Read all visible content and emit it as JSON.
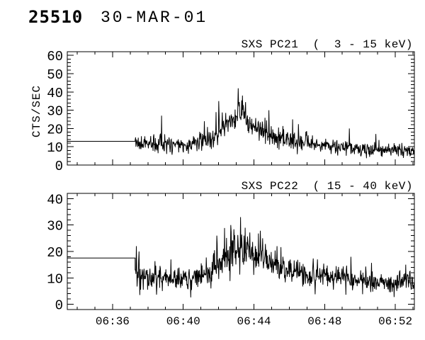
{
  "header": {
    "observation_number": "25510",
    "date": "30-MAR-01"
  },
  "colors": {
    "foreground": "#000000",
    "background": "#ffffff"
  },
  "chart_data": [
    {
      "id": "pc21",
      "type": "line",
      "title": "SXS PC21  (  3 - 15 keV)",
      "ylabel": "CTS/SEC",
      "ylim": [
        0,
        62
      ],
      "yticks": [
        0,
        10,
        20,
        30,
        40,
        50,
        60
      ],
      "ytick_labels": [
        "0",
        "10",
        "20",
        "30",
        "40",
        "50",
        "60"
      ],
      "y_minor_step": 2,
      "xlim_minutes": [
        33.44,
        53.08
      ],
      "xticks_minutes": [
        36,
        40,
        44,
        48,
        52
      ],
      "xtick_labels": [
        "06:36",
        "06:40",
        "06:44",
        "06:48",
        "06:52"
      ],
      "x_minor_step_minutes": 1,
      "show_x_labels": false,
      "grid": false,
      "line_color": "#000000",
      "flat_segment": {
        "start_min": 33.44,
        "end_min": 37.28,
        "value": 13.0
      },
      "noise_seed": 1103,
      "sample_step_min": 0.022,
      "mean_profile": [
        [
          37.28,
          12.5
        ],
        [
          38.0,
          12.0
        ],
        [
          39.0,
          11.5
        ],
        [
          40.0,
          11.0
        ],
        [
          40.8,
          12.0
        ],
        [
          41.5,
          14.5
        ],
        [
          42.0,
          17.0
        ],
        [
          42.5,
          22.0
        ],
        [
          42.9,
          26.0
        ],
        [
          43.15,
          29.0
        ],
        [
          43.4,
          26.0
        ],
        [
          43.8,
          22.0
        ],
        [
          44.3,
          19.0
        ],
        [
          45.0,
          16.5
        ],
        [
          45.8,
          14.5
        ],
        [
          46.5,
          13.0
        ],
        [
          47.3,
          11.5
        ],
        [
          48.0,
          10.5
        ],
        [
          49.0,
          9.5
        ],
        [
          50.0,
          9.0
        ],
        [
          51.0,
          8.5
        ],
        [
          52.0,
          8.0
        ],
        [
          53.1,
          7.5
        ]
      ],
      "sigma_profile": [
        [
          37.28,
          2.6
        ],
        [
          40.0,
          2.3
        ],
        [
          41.5,
          2.8
        ],
        [
          42.5,
          3.5
        ],
        [
          43.5,
          3.8
        ],
        [
          44.5,
          3.2
        ],
        [
          46.0,
          2.6
        ],
        [
          48.0,
          2.0
        ],
        [
          53.1,
          1.7
        ]
      ],
      "spikes": [
        [
          38.78,
          27
        ],
        [
          41.2,
          24
        ],
        [
          42.0,
          35
        ],
        [
          43.1,
          42
        ],
        [
          43.35,
          38
        ],
        [
          44.85,
          30
        ],
        [
          46.2,
          25
        ],
        [
          49.4,
          20
        ],
        [
          50.9,
          17
        ]
      ]
    },
    {
      "id": "pc22",
      "type": "line",
      "title": "SXS PC22  ( 15 - 40 keV)",
      "ylabel": "",
      "ylim": [
        -2,
        42
      ],
      "yticks": [
        0,
        10,
        20,
        30,
        40
      ],
      "ytick_labels": [
        "0",
        "10",
        "20",
        "30",
        "40"
      ],
      "y_minor_step": 2,
      "xlim_minutes": [
        33.44,
        53.08
      ],
      "xticks_minutes": [
        36,
        40,
        44,
        48,
        52
      ],
      "xtick_labels": [
        "06:36",
        "06:40",
        "06:44",
        "06:48",
        "06:52"
      ],
      "x_minor_step_minutes": 1,
      "show_x_labels": true,
      "grid": false,
      "line_color": "#000000",
      "flat_segment": {
        "start_min": 33.44,
        "end_min": 37.28,
        "value": 17.5
      },
      "noise_seed": 2207,
      "sample_step_min": 0.022,
      "mean_profile": [
        [
          37.28,
          11.0
        ],
        [
          37.6,
          10.0
        ],
        [
          38.5,
          9.5
        ],
        [
          39.5,
          9.5
        ],
        [
          40.5,
          9.5
        ],
        [
          41.3,
          11.0
        ],
        [
          42.0,
          15.0
        ],
        [
          42.5,
          18.5
        ],
        [
          43.0,
          20.5
        ],
        [
          43.3,
          21.0
        ],
        [
          43.7,
          19.5
        ],
        [
          44.2,
          17.5
        ],
        [
          44.8,
          15.5
        ],
        [
          45.5,
          14.0
        ],
        [
          46.2,
          12.5
        ],
        [
          47.0,
          11.0
        ],
        [
          48.0,
          10.5
        ],
        [
          49.0,
          10.0
        ],
        [
          50.0,
          9.0
        ],
        [
          51.0,
          8.5
        ],
        [
          51.8,
          8.0
        ],
        [
          52.5,
          9.0
        ],
        [
          53.1,
          8.5
        ]
      ],
      "sigma_profile": [
        [
          37.28,
          2.8
        ],
        [
          39.0,
          2.2
        ],
        [
          41.0,
          2.4
        ],
        [
          42.5,
          3.2
        ],
        [
          43.5,
          3.4
        ],
        [
          45.0,
          2.8
        ],
        [
          47.0,
          2.2
        ],
        [
          50.0,
          2.0
        ],
        [
          53.1,
          2.0
        ]
      ],
      "spikes": [
        [
          37.35,
          22
        ],
        [
          37.5,
          20
        ],
        [
          39.3,
          17
        ],
        [
          41.9,
          26
        ],
        [
          42.7,
          30
        ],
        [
          43.25,
          33
        ],
        [
          43.5,
          29
        ],
        [
          44.5,
          25
        ],
        [
          45.3,
          22
        ],
        [
          47.6,
          17
        ],
        [
          49.5,
          18
        ],
        [
          52.6,
          15
        ]
      ]
    }
  ]
}
